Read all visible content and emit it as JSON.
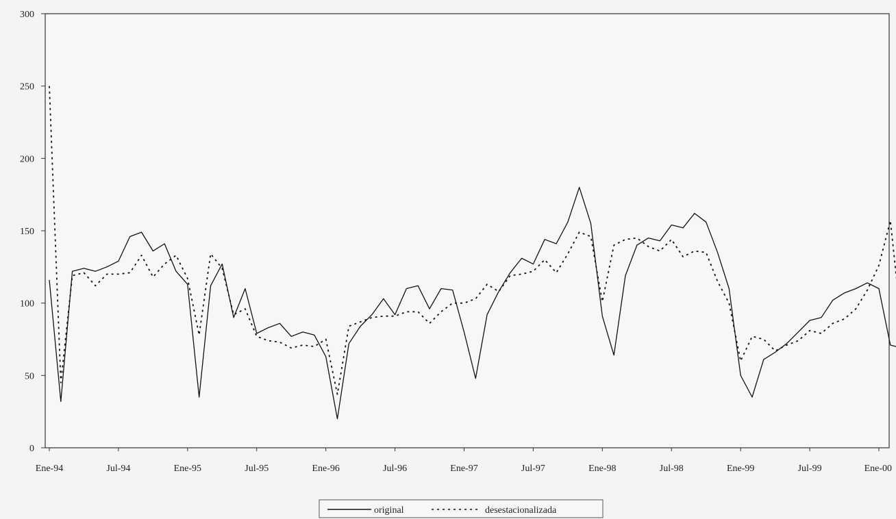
{
  "chart_data": {
    "type": "line",
    "title": "",
    "xlabel": "",
    "ylabel": "",
    "ylim": [
      0,
      300
    ],
    "yticks": [
      0,
      50,
      100,
      150,
      200,
      250,
      300
    ],
    "xtick_labels": [
      "Ene-94",
      "Jul-94",
      "Ene-95",
      "Jul-95",
      "Ene-96",
      "Jul-96",
      "Ene-97",
      "Jul-97",
      "Ene-98",
      "Jul-98",
      "Ene-99",
      "Jul-99",
      "Ene-00"
    ],
    "xtick_month_index": [
      0,
      6,
      12,
      18,
      24,
      30,
      36,
      42,
      48,
      54,
      60,
      66,
      72
    ],
    "x_months": 74,
    "grid": false,
    "legend_position": "bottom-center",
    "series": [
      {
        "name": "original",
        "style": "solid",
        "values": [
          116,
          32,
          122,
          124,
          122,
          125,
          129,
          146,
          149,
          136,
          141,
          122,
          113,
          35,
          112,
          127,
          90,
          110,
          79,
          83,
          86,
          77,
          80,
          78,
          63,
          20,
          72,
          84,
          92,
          103,
          92,
          110,
          112,
          96,
          110,
          109,
          80,
          48,
          92,
          108,
          121,
          131,
          127,
          144,
          141,
          156,
          180,
          155,
          91,
          64,
          119,
          140,
          145,
          143,
          154,
          152,
          162,
          156,
          135,
          110,
          50,
          35,
          61,
          66,
          72,
          80,
          88,
          90,
          102,
          107,
          110,
          114,
          110,
          71,
          69
        ]
      },
      {
        "name": "desestacionalizada",
        "style": "dashed",
        "values": [
          250,
          45,
          119,
          121,
          112,
          120,
          120,
          121,
          133,
          118,
          127,
          133,
          117,
          78,
          134,
          124,
          92,
          96,
          77,
          74,
          73,
          69,
          71,
          70,
          75,
          37,
          84,
          87,
          90,
          91,
          91,
          94,
          94,
          86,
          94,
          100,
          100,
          103,
          113,
          108,
          119,
          120,
          122,
          130,
          121,
          134,
          149,
          146,
          101,
          140,
          144,
          145,
          139,
          136,
          144,
          132,
          136,
          135,
          115,
          100,
          60,
          77,
          75,
          67,
          71,
          74,
          81,
          79,
          86,
          89,
          96,
          109,
          126,
          157,
          82
        ]
      }
    ]
  }
}
